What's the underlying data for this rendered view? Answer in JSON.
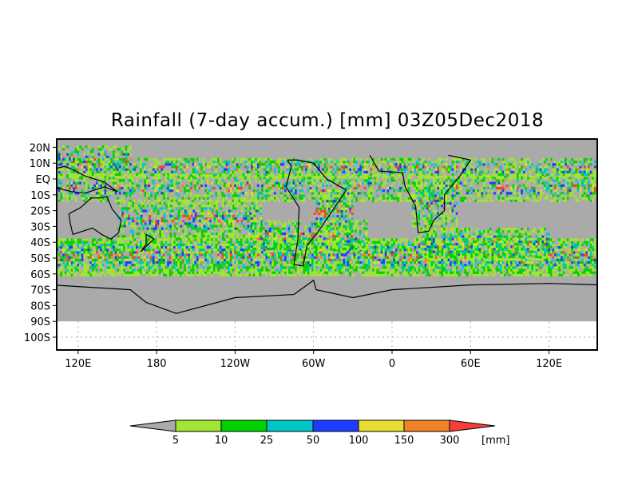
{
  "title": "Rainfall (7-day accum.) [mm] 03Z05Dec2018",
  "map": {
    "lat_labels": [
      "20N",
      "10N",
      "EQ",
      "10S",
      "20S",
      "30S",
      "40S",
      "50S",
      "60S",
      "70S",
      "80S",
      "90S",
      "100S"
    ],
    "lat_values": [
      20,
      10,
      0,
      -10,
      -20,
      -30,
      -40,
      -50,
      -60,
      -70,
      -80,
      -90,
      -100
    ],
    "lon_labels": [
      "120E",
      "180",
      "120W",
      "60W",
      "0",
      "60E",
      "120E"
    ],
    "lon_values": [
      120,
      180,
      240,
      300,
      360,
      420,
      480
    ],
    "no_data_color": "#aaaaaa"
  },
  "colorbar": {
    "levels": [
      "5",
      "10",
      "25",
      "50",
      "100",
      "150",
      "300"
    ],
    "colors": [
      "#aaaaaa",
      "#a0e632",
      "#00d200",
      "#00c8c8",
      "#1e3cff",
      "#e6dc32",
      "#f08228",
      "#fa3c3c"
    ],
    "unit": "[mm]"
  }
}
